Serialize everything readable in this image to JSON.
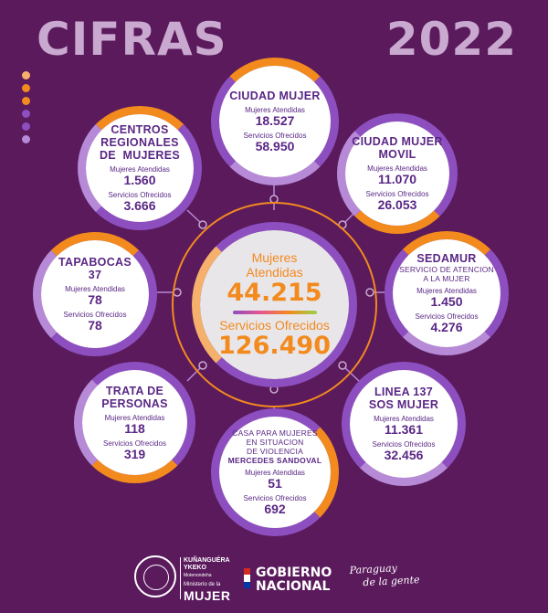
{
  "title_left": "CIFRAS",
  "title_right": "2022",
  "dots_colors": [
    "#f5b06b",
    "#f28a1e",
    "#f28a1e",
    "#8d4fbf",
    "#8d4fbf",
    "#b78ad8"
  ],
  "center": {
    "label_a": "Mujeres",
    "label_b": "Atendidas",
    "value_a": "44.215",
    "label_c": "Servicios Ofrecidos",
    "value_c": "126.490"
  },
  "nodes": {
    "ciudad_mujer": {
      "name": "CIUDAD MUJER",
      "l1": "Mujeres Atendidas",
      "v1": "18.527",
      "l2": "Servicios Ofrecidos",
      "v2": "58.950"
    },
    "ciudad_mujer_movil": {
      "name1": "CIUDAD MUJER",
      "name2": "MOVIL",
      "l1": "Mujeres Atendidas",
      "v1": "11.070",
      "l2": "Servicios Ofrecidos",
      "v2": "26.053"
    },
    "sedamur": {
      "name": "SEDAMUR",
      "sub1": "SERVICIO DE ATENCION",
      "sub2": "A LA MUJER",
      "l1": "Mujeres Atendidas",
      "v1": "1.450",
      "l2": "Servicios Ofrecidos",
      "v2": "4.276"
    },
    "linea137": {
      "name1": "LINEA 137",
      "name2": "SOS MUJER",
      "l1": "Mujeres Atendidas",
      "v1": "11.361",
      "l2": "Servicios Ofrecidos",
      "v2": "32.456"
    },
    "casa": {
      "s1": "CASA PARA MUJERES",
      "s2": "EN SITUACION",
      "s3": "DE VIOLENCIA",
      "s4": "MERCEDES SANDOVAL",
      "l1": "Mujeres Atendidas",
      "v1": "51",
      "l2": "Servicios Ofrecidos",
      "v2": "692"
    },
    "trata": {
      "name1": "TRATA DE",
      "name2": "PERSONAS",
      "l1": "Mujeres Atendidas",
      "v1": "118",
      "l2": "Servicios Ofrecidos",
      "v2": "319"
    },
    "tapabocas": {
      "name1": "TAPABOCAS",
      "name2": "37",
      "l1": "Mujeres Atendidas",
      "v1": "78",
      "l2": "Servicios Ofrecidos",
      "v2": "78"
    },
    "centros": {
      "name1": "CENTROS",
      "name2": "REGIONALES",
      "name3": "DE  MUJERES",
      "l1": "Mujeres Atendidas",
      "v1": "1.560",
      "l2": "Servicios Ofrecidos",
      "v2": "3.666"
    }
  },
  "footer": {
    "ministry_line1": "KUÑANGUÉRA",
    "ministry_line2": "YKEKO",
    "ministry_sub": "Motenondeha",
    "ministry_line3": "Ministerio de la",
    "ministry_line4": "MUJER",
    "gov_line1": "GOBIERNO",
    "gov_line2": "NACIONAL",
    "slogan_line1": "Paraguay",
    "slogan_line2": "de la gente"
  },
  "colors": {
    "background": "#5a1a5c",
    "purple": "#8d4fbf",
    "orange": "#f28a1e",
    "text_purple": "#5a2785"
  }
}
